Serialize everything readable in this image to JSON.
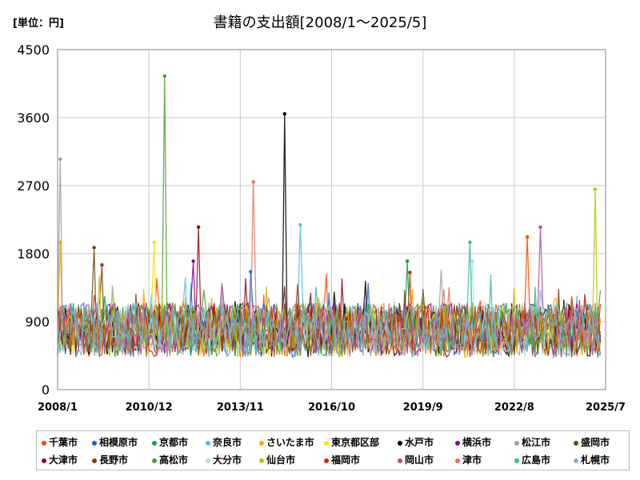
{
  "chart_data": {
    "type": "line",
    "title": "書籍の支出額[2008/1～2025/5]",
    "unit_label": "[単位：円]",
    "xlabel": "",
    "ylabel": "",
    "ylim": [
      0,
      4500
    ],
    "yticks": [
      0,
      900,
      1800,
      2700,
      3600,
      4500
    ],
    "xticks": [
      "2008/1",
      "2010/12",
      "2013/11",
      "2016/10",
      "2019/9",
      "2022/8",
      "2025/7"
    ],
    "x_range": [
      "2008/1",
      "2025/7"
    ],
    "grid": "on",
    "legend_position": "bottom",
    "series": [
      {
        "name": "千葉市",
        "color": "#ff4500",
        "peak": {
          "date": "2023/1",
          "value": 2020
        }
      },
      {
        "name": "相模原市",
        "color": "#1f5fe0",
        "peak": {
          "date": "2014/3",
          "value": 1560
        }
      },
      {
        "name": "京都市",
        "color": "#1a9e4a",
        "peak": {
          "date": "2019/3",
          "value": 1700
        }
      },
      {
        "name": "奈良市",
        "color": "#55b9f0",
        "peak": {
          "date": "2015/10",
          "value": 2180
        }
      },
      {
        "name": "さいたま市",
        "color": "#ffa500",
        "peak": {
          "date": "2008/2",
          "value": 1950
        }
      },
      {
        "name": "東京都区部",
        "color": "#f2e600",
        "peak": {
          "date": "2011/2",
          "value": 1950
        }
      },
      {
        "name": "水戸市",
        "color": "#000000",
        "peak": {
          "date": "2015/4",
          "value": 3650
        }
      },
      {
        "name": "横浜市",
        "color": "#8b008b",
        "peak": {
          "date": "2012/5",
          "value": 1700
        }
      },
      {
        "name": "松江市",
        "color": "#a0a0a0",
        "peak": {
          "date": "2008/2",
          "value": 3050
        }
      },
      {
        "name": "盛岡市",
        "color": "#6b4a0c",
        "peak": {
          "date": "2009/3",
          "value": 1880
        }
      },
      {
        "name": "大津市",
        "color": "#8b0a1a",
        "peak": {
          "date": "2012/7",
          "value": 2150
        }
      },
      {
        "name": "長野市",
        "color": "#8b3a1a",
        "peak": {
          "date": "2009/6",
          "value": 1650
        }
      },
      {
        "name": "高松市",
        "color": "#4aa02c",
        "peak": {
          "date": "2011/6",
          "value": 4150
        }
      },
      {
        "name": "大分市",
        "color": "#b0e0e6",
        "peak": {
          "date": "2021/4",
          "value": 1700
        }
      },
      {
        "name": "仙台市",
        "color": "#b8c400",
        "peak": {
          "date": "2025/3",
          "value": 2650
        }
      },
      {
        "name": "福岡市",
        "color": "#c83200",
        "peak": {
          "date": "2019/4",
          "value": 1550
        }
      },
      {
        "name": "岡山市",
        "color": "#b0509a",
        "peak": {
          "date": "2023/6",
          "value": 2150
        }
      },
      {
        "name": "津市",
        "color": "#e07860",
        "peak": {
          "date": "2014/4",
          "value": 2750
        }
      },
      {
        "name": "広島市",
        "color": "#40b89a",
        "peak": {
          "date": "2021/3",
          "value": 1950
        }
      },
      {
        "name": "札幌市",
        "color": "#8ab0d8",
        "peak": {
          "date": "2008/4",
          "value": 1100
        }
      }
    ]
  }
}
